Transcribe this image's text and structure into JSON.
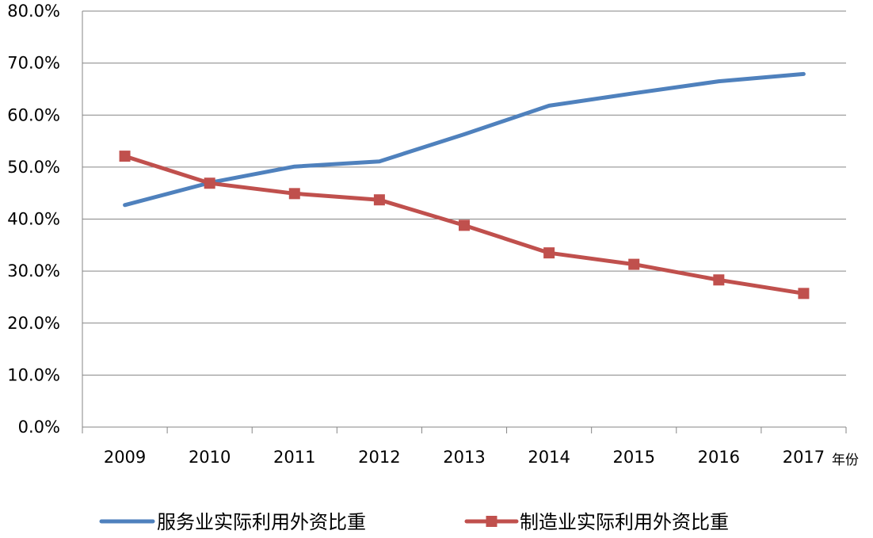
{
  "chart_data": {
    "type": "line",
    "title": "",
    "xlabel": "年份",
    "ylabel": "",
    "categories": [
      "2009",
      "2010",
      "2011",
      "2012",
      "2013",
      "2014",
      "2015",
      "2016",
      "2017"
    ],
    "ylim": [
      0,
      80
    ],
    "yticks": [
      "0.0%",
      "10.0%",
      "20.0%",
      "30.0%",
      "40.0%",
      "50.0%",
      "60.0%",
      "70.0%",
      "80.0%"
    ],
    "grid": true,
    "legend_position": "bottom",
    "series": [
      {
        "name": "服务业实际利用外资比重",
        "color": "#4F81BD",
        "marker": "none",
        "values": [
          42.7,
          47.0,
          50.1,
          51.1,
          56.3,
          61.8,
          64.2,
          66.5,
          67.9
        ]
      },
      {
        "name": "制造业实际利用外资比重",
        "color": "#C0504D",
        "marker": "square",
        "values": [
          52.1,
          46.9,
          44.9,
          43.7,
          38.8,
          33.5,
          31.3,
          28.3,
          25.7
        ]
      }
    ]
  }
}
